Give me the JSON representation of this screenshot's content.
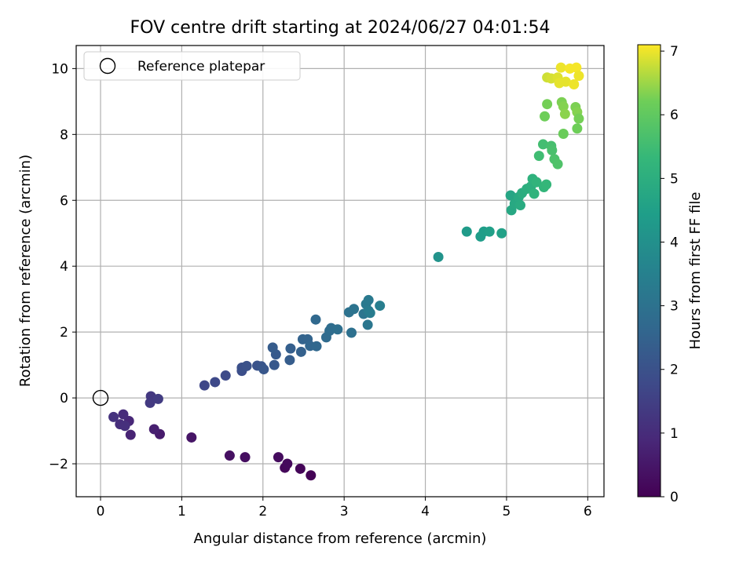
{
  "chart_data": {
    "type": "scatter",
    "title": "FOV centre drift starting at 2024/06/27 04:01:54",
    "xlabel": "Angular distance from reference (arcmin)",
    "ylabel": "Rotation from reference (arcmin)",
    "xlim": [
      -0.3,
      6.2
    ],
    "ylim": [
      -3.0,
      10.7
    ],
    "xticks": [
      0,
      1,
      2,
      3,
      4,
      5,
      6
    ],
    "yticks": [
      -2,
      0,
      2,
      4,
      6,
      8,
      10
    ],
    "grid": true,
    "legend": {
      "placement": "top-left",
      "entries": [
        "Reference platepar"
      ]
    },
    "reference_point": {
      "x": 0,
      "y": 0
    },
    "colorbar": {
      "label": "Hours from first FF file",
      "colormap": "viridis",
      "range": [
        0,
        7.1
      ],
      "ticks": [
        0,
        1,
        2,
        3,
        4,
        5,
        6,
        7
      ]
    },
    "points": [
      {
        "x": 2.59,
        "y": -2.35,
        "c": 0.05
      },
      {
        "x": 2.46,
        "y": -2.15,
        "c": 0.1
      },
      {
        "x": 2.27,
        "y": -2.12,
        "c": 0.15
      },
      {
        "x": 2.3,
        "y": -2.0,
        "c": 0.2
      },
      {
        "x": 2.19,
        "y": -1.8,
        "c": 0.25
      },
      {
        "x": 1.78,
        "y": -1.8,
        "c": 0.3
      },
      {
        "x": 1.59,
        "y": -1.75,
        "c": 0.35
      },
      {
        "x": 1.12,
        "y": -1.2,
        "c": 0.45
      },
      {
        "x": 0.73,
        "y": -1.1,
        "c": 0.6
      },
      {
        "x": 0.66,
        "y": -0.95,
        "c": 0.7
      },
      {
        "x": 0.37,
        "y": -1.12,
        "c": 0.8
      },
      {
        "x": 0.35,
        "y": -0.7,
        "c": 0.9
      },
      {
        "x": 0.28,
        "y": -0.5,
        "c": 1.0
      },
      {
        "x": 0.24,
        "y": -0.8,
        "c": 1.05
      },
      {
        "x": 0.3,
        "y": -0.85,
        "c": 1.1
      },
      {
        "x": 0.16,
        "y": -0.58,
        "c": 1.15
      },
      {
        "x": 0.62,
        "y": 0.05,
        "c": 1.3
      },
      {
        "x": 0.61,
        "y": -0.15,
        "c": 1.35
      },
      {
        "x": 0.71,
        "y": -0.03,
        "c": 1.4
      },
      {
        "x": 1.28,
        "y": 0.38,
        "c": 1.7
      },
      {
        "x": 1.41,
        "y": 0.48,
        "c": 1.75
      },
      {
        "x": 1.54,
        "y": 0.68,
        "c": 1.8
      },
      {
        "x": 1.74,
        "y": 0.82,
        "c": 1.9
      },
      {
        "x": 1.74,
        "y": 0.92,
        "c": 1.95
      },
      {
        "x": 1.8,
        "y": 0.97,
        "c": 2.0
      },
      {
        "x": 1.93,
        "y": 0.98,
        "c": 2.05
      },
      {
        "x": 1.98,
        "y": 0.96,
        "c": 2.1
      },
      {
        "x": 2.01,
        "y": 0.87,
        "c": 2.15
      },
      {
        "x": 2.14,
        "y": 1.0,
        "c": 2.2
      },
      {
        "x": 2.16,
        "y": 1.32,
        "c": 2.25
      },
      {
        "x": 2.12,
        "y": 1.53,
        "c": 2.3
      },
      {
        "x": 2.33,
        "y": 1.15,
        "c": 2.35
      },
      {
        "x": 2.34,
        "y": 1.5,
        "c": 2.4
      },
      {
        "x": 2.47,
        "y": 1.4,
        "c": 2.45
      },
      {
        "x": 2.49,
        "y": 1.78,
        "c": 2.5
      },
      {
        "x": 2.55,
        "y": 1.78,
        "c": 2.55
      },
      {
        "x": 2.58,
        "y": 1.58,
        "c": 2.6
      },
      {
        "x": 2.66,
        "y": 1.57,
        "c": 2.65
      },
      {
        "x": 2.65,
        "y": 2.38,
        "c": 2.7
      },
      {
        "x": 2.78,
        "y": 1.84,
        "c": 2.75
      },
      {
        "x": 2.82,
        "y": 2.04,
        "c": 2.8
      },
      {
        "x": 2.84,
        "y": 2.12,
        "c": 2.85
      },
      {
        "x": 2.92,
        "y": 2.08,
        "c": 2.9
      },
      {
        "x": 3.09,
        "y": 1.98,
        "c": 2.95
      },
      {
        "x": 3.06,
        "y": 2.6,
        "c": 3.0
      },
      {
        "x": 3.12,
        "y": 2.7,
        "c": 3.05
      },
      {
        "x": 3.24,
        "y": 2.55,
        "c": 3.1
      },
      {
        "x": 3.29,
        "y": 2.22,
        "c": 3.15
      },
      {
        "x": 3.27,
        "y": 2.85,
        "c": 3.2
      },
      {
        "x": 3.3,
        "y": 2.97,
        "c": 3.25
      },
      {
        "x": 3.3,
        "y": 2.65,
        "c": 3.3
      },
      {
        "x": 3.32,
        "y": 2.58,
        "c": 3.35
      },
      {
        "x": 3.44,
        "y": 2.8,
        "c": 3.4
      },
      {
        "x": 4.16,
        "y": 4.28,
        "c": 4.1
      },
      {
        "x": 4.51,
        "y": 5.05,
        "c": 4.35
      },
      {
        "x": 4.68,
        "y": 4.9,
        "c": 4.4
      },
      {
        "x": 4.72,
        "y": 5.05,
        "c": 4.45
      },
      {
        "x": 4.79,
        "y": 5.05,
        "c": 4.5
      },
      {
        "x": 4.94,
        "y": 5.0,
        "c": 4.55
      },
      {
        "x": 5.05,
        "y": 6.15,
        "c": 4.7
      },
      {
        "x": 5.06,
        "y": 5.7,
        "c": 4.75
      },
      {
        "x": 5.1,
        "y": 5.9,
        "c": 4.8
      },
      {
        "x": 5.15,
        "y": 6.1,
        "c": 4.85
      },
      {
        "x": 5.17,
        "y": 5.85,
        "c": 4.9
      },
      {
        "x": 5.19,
        "y": 6.22,
        "c": 4.95
      },
      {
        "x": 5.25,
        "y": 6.35,
        "c": 5.0
      },
      {
        "x": 5.3,
        "y": 6.42,
        "c": 5.05
      },
      {
        "x": 5.32,
        "y": 6.65,
        "c": 5.1
      },
      {
        "x": 5.34,
        "y": 6.2,
        "c": 5.15
      },
      {
        "x": 5.37,
        "y": 6.55,
        "c": 5.2
      },
      {
        "x": 5.46,
        "y": 6.4,
        "c": 5.25
      },
      {
        "x": 5.49,
        "y": 6.48,
        "c": 5.3
      },
      {
        "x": 5.4,
        "y": 7.35,
        "c": 5.5
      },
      {
        "x": 5.45,
        "y": 7.7,
        "c": 5.55
      },
      {
        "x": 5.55,
        "y": 7.65,
        "c": 5.6
      },
      {
        "x": 5.56,
        "y": 7.52,
        "c": 5.65
      },
      {
        "x": 5.59,
        "y": 7.25,
        "c": 5.7
      },
      {
        "x": 5.63,
        "y": 7.1,
        "c": 5.75
      },
      {
        "x": 5.47,
        "y": 8.55,
        "c": 6.2
      },
      {
        "x": 5.5,
        "y": 8.92,
        "c": 6.25
      },
      {
        "x": 5.68,
        "y": 8.98,
        "c": 6.3
      },
      {
        "x": 5.7,
        "y": 8.85,
        "c": 6.35
      },
      {
        "x": 5.72,
        "y": 8.62,
        "c": 6.4
      },
      {
        "x": 5.7,
        "y": 8.02,
        "c": 6.15
      },
      {
        "x": 5.85,
        "y": 8.83,
        "c": 6.3
      },
      {
        "x": 5.87,
        "y": 8.68,
        "c": 6.35
      },
      {
        "x": 5.87,
        "y": 8.18,
        "c": 6.2
      },
      {
        "x": 5.89,
        "y": 8.48,
        "c": 6.25
      },
      {
        "x": 5.5,
        "y": 9.73,
        "c": 6.8
      },
      {
        "x": 5.55,
        "y": 9.7,
        "c": 6.85
      },
      {
        "x": 5.63,
        "y": 9.73,
        "c": 6.9
      },
      {
        "x": 5.65,
        "y": 9.56,
        "c": 6.95
      },
      {
        "x": 5.67,
        "y": 10.03,
        "c": 7.0
      },
      {
        "x": 5.73,
        "y": 9.6,
        "c": 6.95
      },
      {
        "x": 5.78,
        "y": 10.0,
        "c": 7.05
      },
      {
        "x": 5.83,
        "y": 9.52,
        "c": 7.0
      },
      {
        "x": 5.86,
        "y": 10.03,
        "c": 7.05
      },
      {
        "x": 5.89,
        "y": 9.78,
        "c": 7.0
      }
    ]
  }
}
